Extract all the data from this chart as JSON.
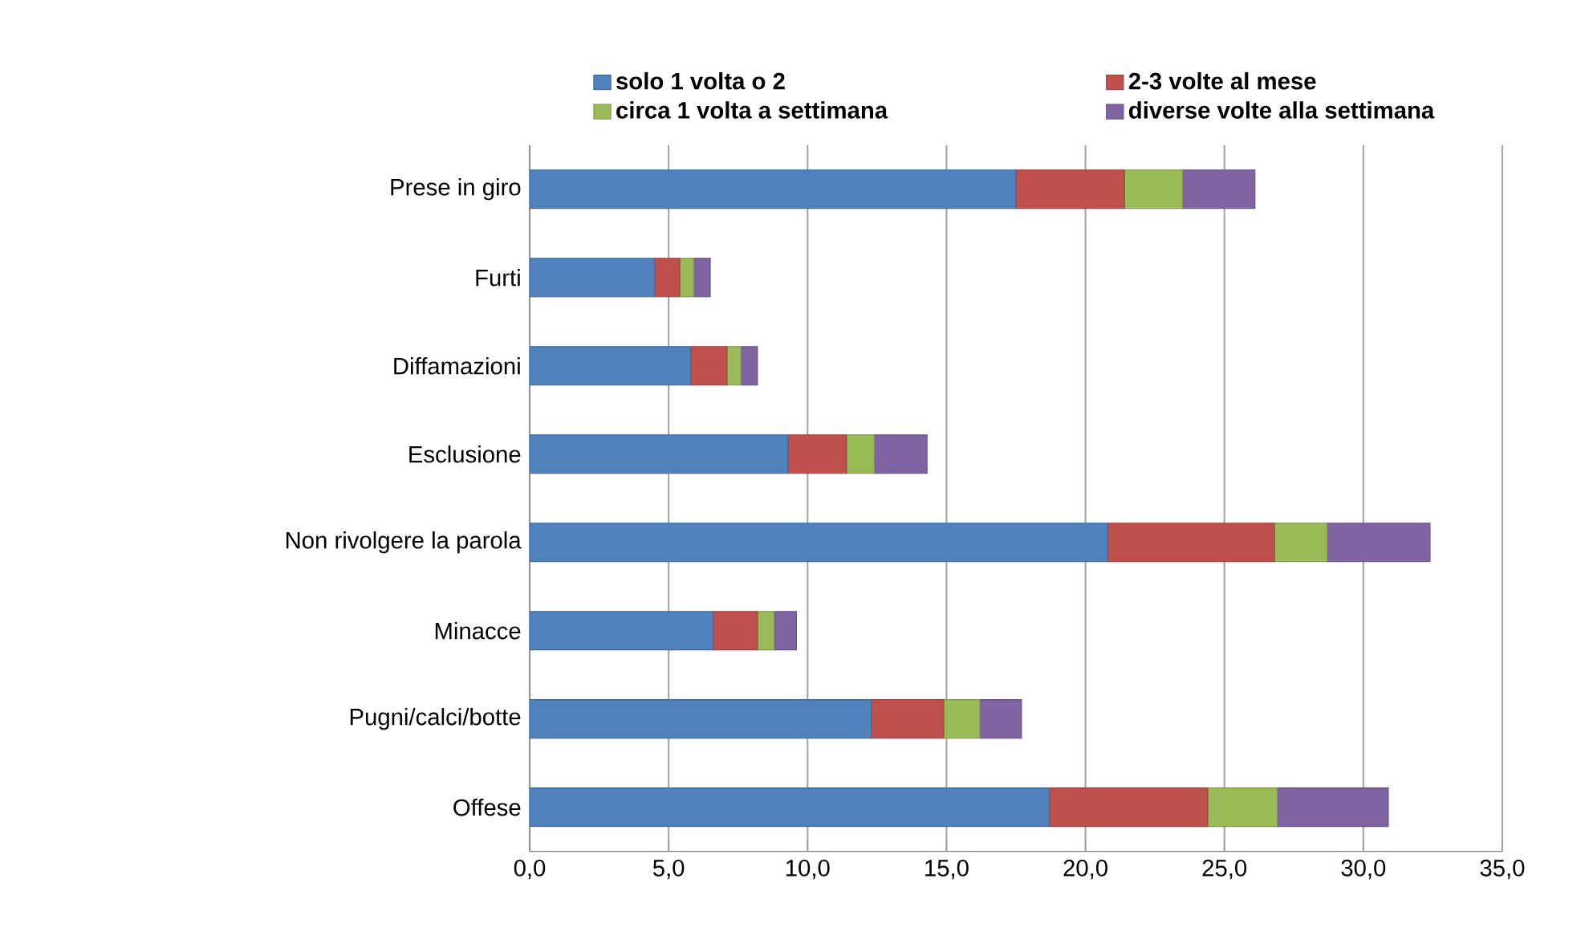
{
  "chart_data": {
    "type": "bar",
    "orientation": "horizontal",
    "stacked": true,
    "categories": [
      "Prese in giro",
      "Furti",
      "Diffamazioni",
      "Esclusione",
      "Non rivolgere la parola",
      "Minacce",
      "Pugni/calci/botte",
      "Offese"
    ],
    "series": [
      {
        "name": "solo 1 volta o 2",
        "color": "#4f81bd",
        "values": [
          17.5,
          4.5,
          5.8,
          9.3,
          20.8,
          6.6,
          12.3,
          18.7
        ]
      },
      {
        "name": "2-3 volte al mese",
        "color": "#c0504d",
        "values": [
          3.9,
          0.9,
          1.3,
          2.1,
          6.0,
          1.6,
          2.6,
          5.7
        ]
      },
      {
        "name": "circa 1 volta a settimana",
        "color": "#9bbb59",
        "values": [
          2.1,
          0.5,
          0.5,
          1.0,
          1.9,
          0.6,
          1.3,
          2.5
        ]
      },
      {
        "name": "diverse volte alla settimana",
        "color": "#8064a2",
        "values": [
          2.6,
          0.6,
          0.6,
          1.9,
          3.7,
          0.8,
          1.5,
          4.0
        ]
      }
    ],
    "xlim": [
      0,
      35
    ],
    "xticks": [
      {
        "value": 0,
        "label": "0,0"
      },
      {
        "value": 5,
        "label": "5,0"
      },
      {
        "value": 10,
        "label": "10,0"
      },
      {
        "value": 15,
        "label": "15,0"
      },
      {
        "value": 20,
        "label": "20,0"
      },
      {
        "value": 25,
        "label": "25,0"
      },
      {
        "value": 30,
        "label": "30,0"
      },
      {
        "value": 35,
        "label": "35,0"
      }
    ],
    "grid": "x",
    "legend": "top"
  }
}
